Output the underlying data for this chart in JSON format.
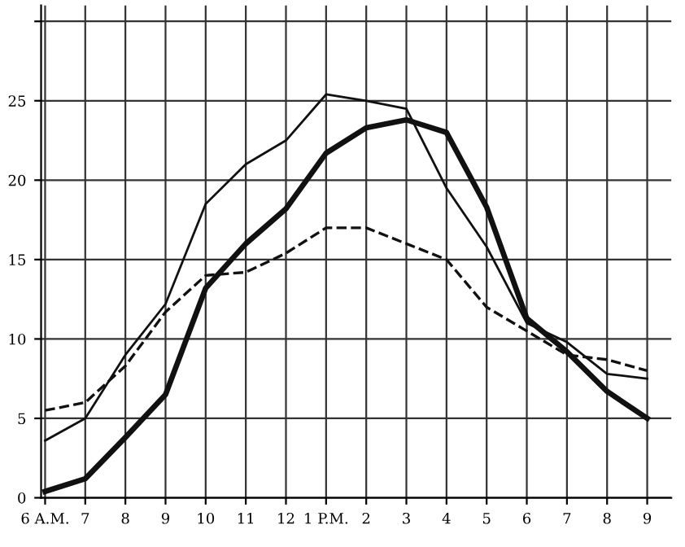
{
  "chart_data": {
    "type": "line",
    "categories": [
      "6 A.M.",
      "7",
      "8",
      "9",
      "10",
      "11",
      "12",
      "1 P.M.",
      "2",
      "3",
      "4",
      "5",
      "6",
      "7",
      "8",
      "9"
    ],
    "ylim": [
      0,
      31
    ],
    "yticks": [
      0,
      5,
      10,
      15,
      20,
      25,
      {
        "value": 30,
        "label": null
      }
    ],
    "grid": true,
    "marker": "none",
    "series": [
      {
        "color": "#111111",
        "line_style": "solid",
        "values": [
          3.6,
          5.0,
          9.0,
          12.2,
          18.5,
          21.0,
          22.5,
          25.4,
          25.0,
          24.5,
          19.5,
          15.8,
          11.0,
          9.8,
          7.8,
          7.5
        ]
      },
      {
        "color": "#111111",
        "line_style": "solid",
        "values": [
          0.4,
          1.2,
          3.8,
          6.5,
          13.2,
          16.0,
          18.2,
          21.7,
          23.3,
          23.8,
          23.0,
          18.3,
          11.3,
          9.2,
          6.7,
          5.0
        ]
      },
      {
        "color": "#111111",
        "line_style": "dashed",
        "values": [
          5.5,
          6.0,
          8.3,
          11.7,
          14.0,
          14.2,
          15.4,
          17.0,
          17.0,
          16.0,
          15.0,
          12.0,
          10.5,
          9.0,
          8.7,
          8.0
        ]
      }
    ]
  }
}
